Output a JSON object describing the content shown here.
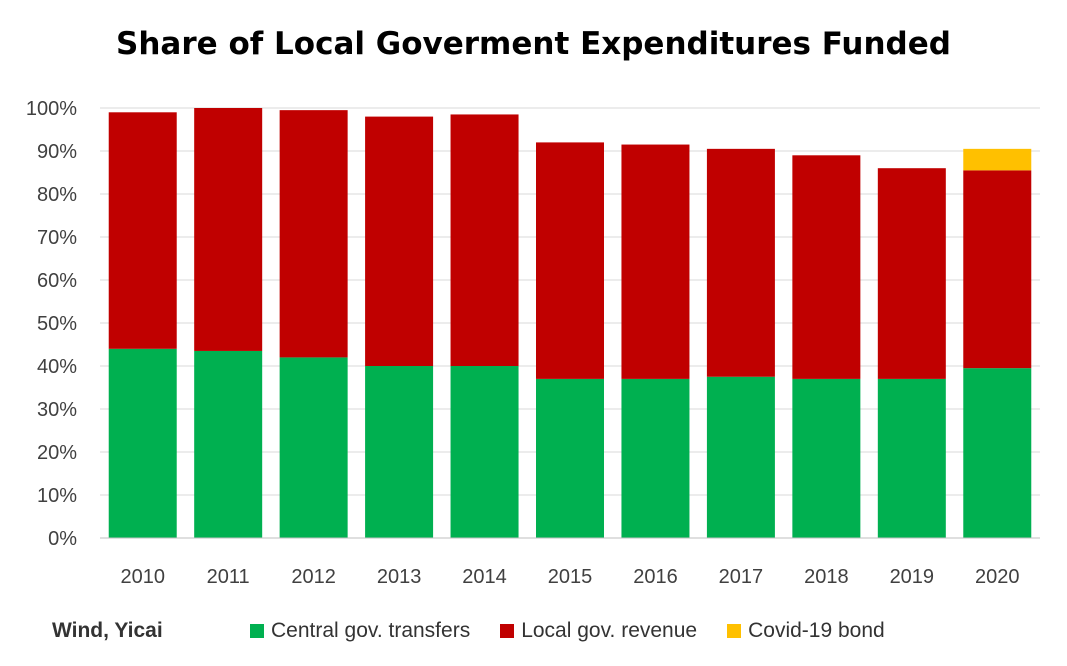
{
  "chart_data": {
    "type": "bar",
    "stacked": true,
    "title": "Share of Local Goverment Expenditures Funded",
    "categories": [
      "2010",
      "2011",
      "2012",
      "2013",
      "2014",
      "2015",
      "2016",
      "2017",
      "2018",
      "2019",
      "2020"
    ],
    "series": [
      {
        "name": "Central gov. transfers",
        "color": "#00b050",
        "values": [
          0.44,
          0.435,
          0.42,
          0.4,
          0.4,
          0.37,
          0.37,
          0.375,
          0.37,
          0.37,
          0.395
        ]
      },
      {
        "name": "Local gov. revenue",
        "color": "#c00000",
        "values": [
          0.55,
          0.565,
          0.575,
          0.58,
          0.585,
          0.55,
          0.545,
          0.53,
          0.52,
          0.49,
          0.46
        ]
      },
      {
        "name": "Covid-19 bond",
        "color": "#ffc000",
        "values": [
          0,
          0,
          0,
          0,
          0,
          0,
          0,
          0,
          0,
          0,
          0.05
        ]
      }
    ],
    "ylim": [
      0,
      1
    ],
    "yticks": [
      "0%",
      "10%",
      "20%",
      "30%",
      "40%",
      "50%",
      "60%",
      "70%",
      "80%",
      "90%",
      "100%"
    ],
    "grid": true,
    "legend_position": "bottom"
  },
  "source": "Wind, Yicai"
}
